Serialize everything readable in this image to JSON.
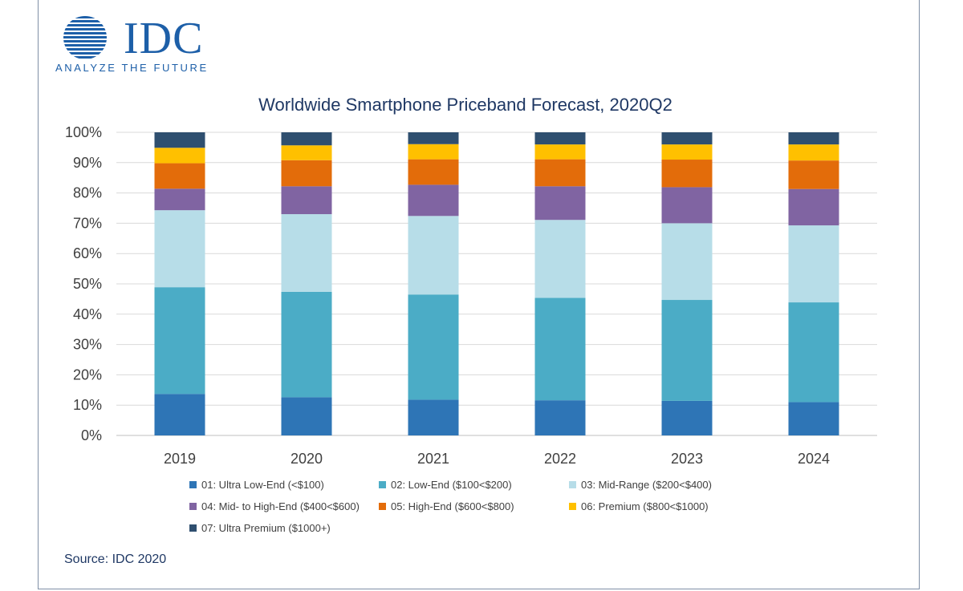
{
  "logo": {
    "word": "IDC",
    "tagline": "ANALYZE THE FUTURE",
    "color": "#1d5fa8"
  },
  "source": "Source: IDC 2020",
  "chart_data": {
    "type": "bar",
    "stacked": true,
    "title": "Worldwide Smartphone Priceband Forecast, 2020Q2",
    "xlabel": "",
    "ylabel": "",
    "ylim": [
      0,
      100
    ],
    "y_ticks": [
      "0%",
      "10%",
      "20%",
      "30%",
      "40%",
      "50%",
      "60%",
      "70%",
      "80%",
      "90%",
      "100%"
    ],
    "grid": true,
    "legend_position": "bottom",
    "categories": [
      "2019",
      "2020",
      "2021",
      "2022",
      "2023",
      "2024"
    ],
    "series": [
      {
        "name": "01: Ultra Low-End (<$100)",
        "color": "#2e75b6",
        "values": [
          13.7,
          12.6,
          11.8,
          11.6,
          11.4,
          11.0
        ]
      },
      {
        "name": "02: Low-End ($100<$200)",
        "color": "#4bacc6",
        "values": [
          35.2,
          34.8,
          34.7,
          33.8,
          33.3,
          32.9
        ]
      },
      {
        "name": "03: Mid-Range ($200<$400)",
        "color": "#b7dde8",
        "values": [
          25.4,
          25.6,
          25.9,
          25.7,
          25.3,
          25.4
        ]
      },
      {
        "name": "04: Mid- to High-End ($400<$600)",
        "color": "#8064a2",
        "values": [
          7.1,
          9.2,
          10.3,
          11.1,
          11.9,
          12.0
        ]
      },
      {
        "name": "05: High-End ($600<$800)",
        "color": "#e36c0a",
        "values": [
          8.4,
          8.6,
          8.4,
          8.9,
          9.1,
          9.4
        ]
      },
      {
        "name": "06: Premium ($800<$1000)",
        "color": "#ffc000",
        "values": [
          5.1,
          4.9,
          5.0,
          4.9,
          5.0,
          5.3
        ]
      },
      {
        "name": "07: Ultra Premium ($1000+)",
        "color": "#2f4f6f",
        "values": [
          5.1,
          4.3,
          3.9,
          4.0,
          4.0,
          4.0
        ]
      }
    ]
  }
}
